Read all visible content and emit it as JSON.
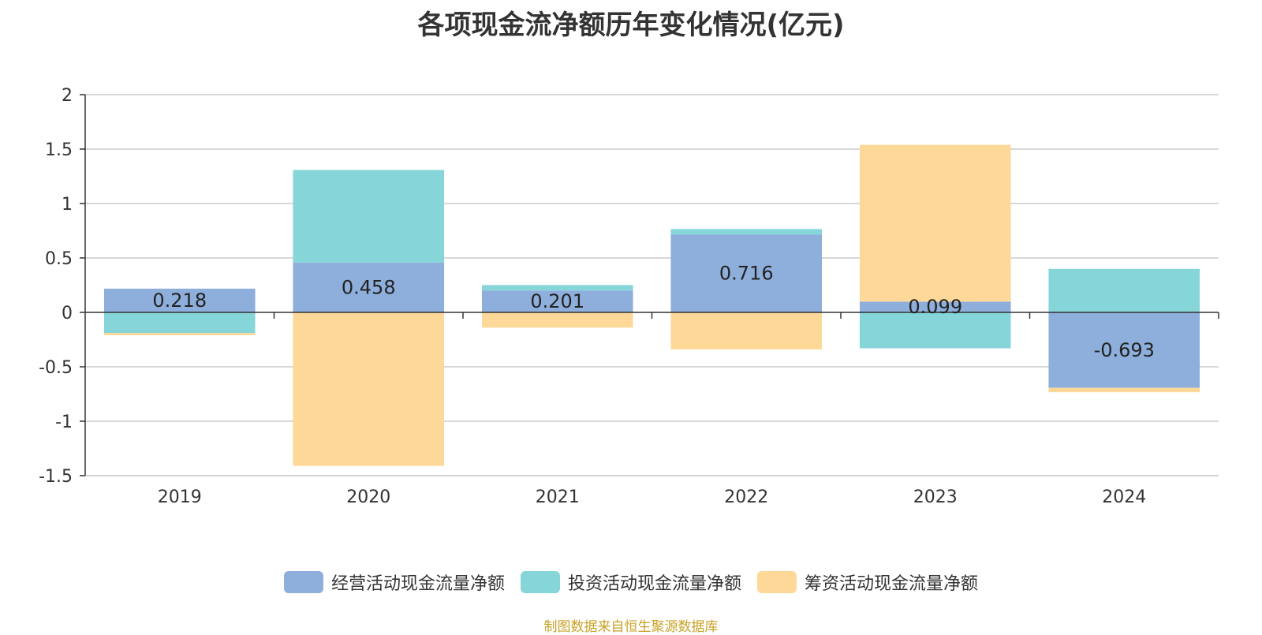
{
  "chart_data": {
    "type": "bar",
    "stacked": true,
    "title": "各项现金流净额历年变化情况(亿元)",
    "categories": [
      "2019",
      "2020",
      "2021",
      "2022",
      "2023",
      "2024"
    ],
    "series": [
      {
        "name": "经营活动现金流量净额",
        "color": "#8eaedb",
        "values": [
          0.218,
          0.458,
          0.201,
          0.716,
          0.099,
          -0.693
        ],
        "labels": [
          "0.218",
          "0.458",
          "0.201",
          "0.716",
          "0.099",
          "-0.693"
        ]
      },
      {
        "name": "投资活动现金流量净额",
        "color": "#86d5d8",
        "values": [
          -0.19,
          0.85,
          0.05,
          0.05,
          -0.33,
          0.4
        ]
      },
      {
        "name": "筹资活动现金流量净额",
        "color": "#fed898",
        "values": [
          -0.02,
          -1.41,
          -0.14,
          -0.34,
          1.44,
          -0.04
        ]
      }
    ],
    "yticks": [
      "2",
      "1.5",
      "1",
      "0.5",
      "0",
      "-0.5",
      "-1",
      "-1.5"
    ],
    "ylim": [
      -1.5,
      2
    ],
    "grid": true,
    "legend_position": "bottom"
  },
  "source_note": "制图数据来自恒生聚源数据库"
}
